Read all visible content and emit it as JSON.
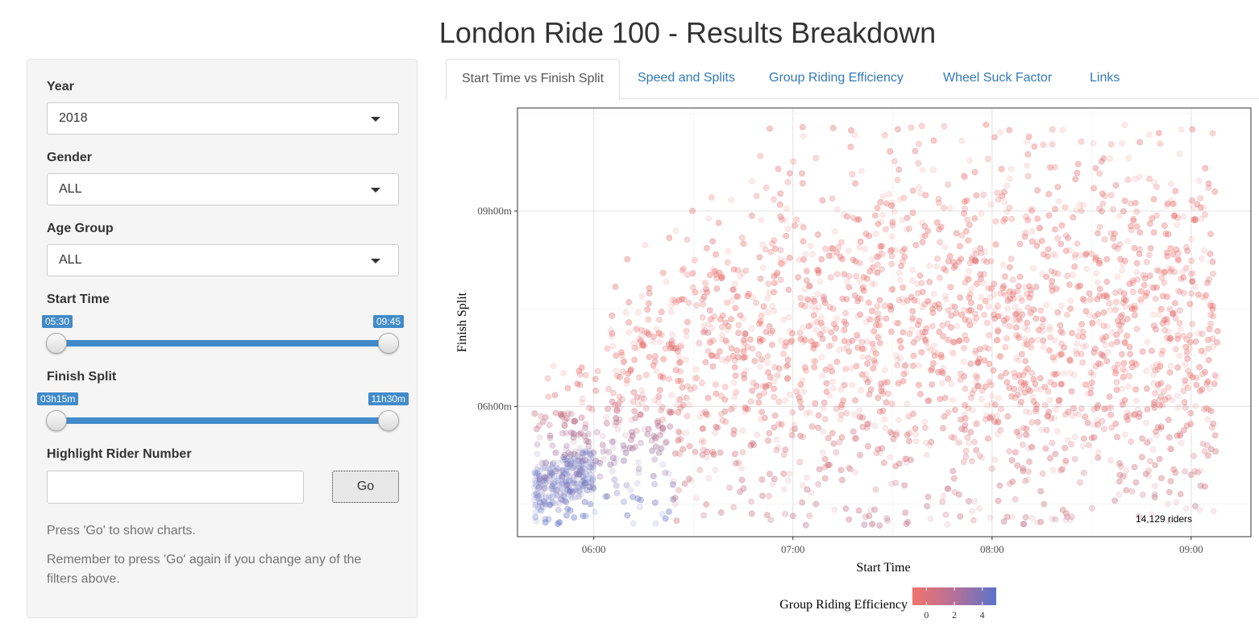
{
  "page": {
    "title": "London Ride 100 - Results Breakdown"
  },
  "sidebar": {
    "year": {
      "label": "Year",
      "value": "2018"
    },
    "gender": {
      "label": "Gender",
      "value": "ALL"
    },
    "age_group": {
      "label": "Age Group",
      "value": "ALL"
    },
    "start_time": {
      "label": "Start Time",
      "min_label": "05:30",
      "max_label": "09:45"
    },
    "finish_split": {
      "label": "Finish Split",
      "min_label": "03h15m",
      "max_label": "11h30m"
    },
    "highlight": {
      "label": "Highlight Rider Number",
      "value": "",
      "go_label": "Go"
    },
    "help1": "Press 'Go' to show charts.",
    "help2": "Remember to press 'Go' again if you change any of the filters above."
  },
  "tabs": [
    {
      "label": "Start Time vs Finish Split",
      "active": true
    },
    {
      "label": "Speed and Splits",
      "active": false
    },
    {
      "label": "Group Riding Efficiency",
      "active": false
    },
    {
      "label": "Wheel Suck Factor",
      "active": false
    },
    {
      "label": "Links",
      "active": false
    }
  ],
  "colors": {
    "accent": "#428bca",
    "link": "#337ab7",
    "point_low": "#f0736a",
    "point_high": "#5b73c8"
  },
  "chart_data": {
    "type": "scatter",
    "xlabel": "Start Time",
    "ylabel": "Finish Split",
    "x_ticks": [
      "06:00",
      "07:00",
      "08:00",
      "09:00"
    ],
    "y_ticks": [
      "06h00m",
      "09h00m"
    ],
    "xlim": [
      "05:37",
      "09:18"
    ],
    "ylim": [
      "04h00m",
      "10h35m"
    ],
    "annotation": "14,129 riders",
    "grid": true,
    "point_count": 14129,
    "legend": {
      "title": "Group Riding Efficiency",
      "ticks": [
        "0",
        "2",
        "4"
      ],
      "range": [
        -1,
        5
      ],
      "position": "bottom"
    },
    "point_cloud": {
      "main_center": {
        "x": "07:15",
        "y": "06h45m"
      },
      "low_efficiency_color": "#f0736a",
      "high_efficiency_color": "#5b73c8",
      "high_efficiency_cluster": {
        "x": "05:45",
        "y": "04h20m"
      }
    }
  }
}
